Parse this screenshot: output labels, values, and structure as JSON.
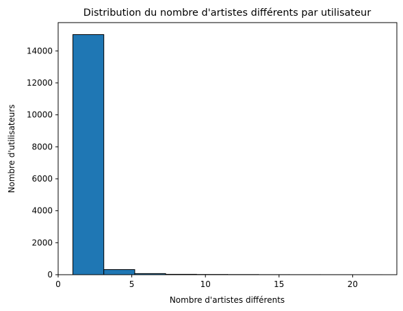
{
  "chart_data": {
    "type": "bar",
    "title": "Distribution du nombre d'artistes différents par utilisateur",
    "xlabel": "Nombre d'artistes différents",
    "ylabel": "Nombre d'utilisateurs",
    "bin_edges": [
      1,
      3.1,
      5.2,
      7.3,
      9.4,
      11.5,
      13.6,
      15.7,
      17.8,
      19.9,
      22
    ],
    "values": [
      15020,
      320,
      70,
      25,
      15,
      10,
      5,
      3,
      2,
      1
    ],
    "xlim": [
      0,
      23
    ],
    "ylim": [
      0,
      15770
    ],
    "xticks": [
      0,
      5,
      10,
      15,
      20
    ],
    "yticks": [
      0,
      2000,
      4000,
      6000,
      8000,
      10000,
      12000,
      14000
    ],
    "grid": false,
    "colors": {
      "bar": "#1f77b4",
      "edge": "#000000"
    }
  }
}
